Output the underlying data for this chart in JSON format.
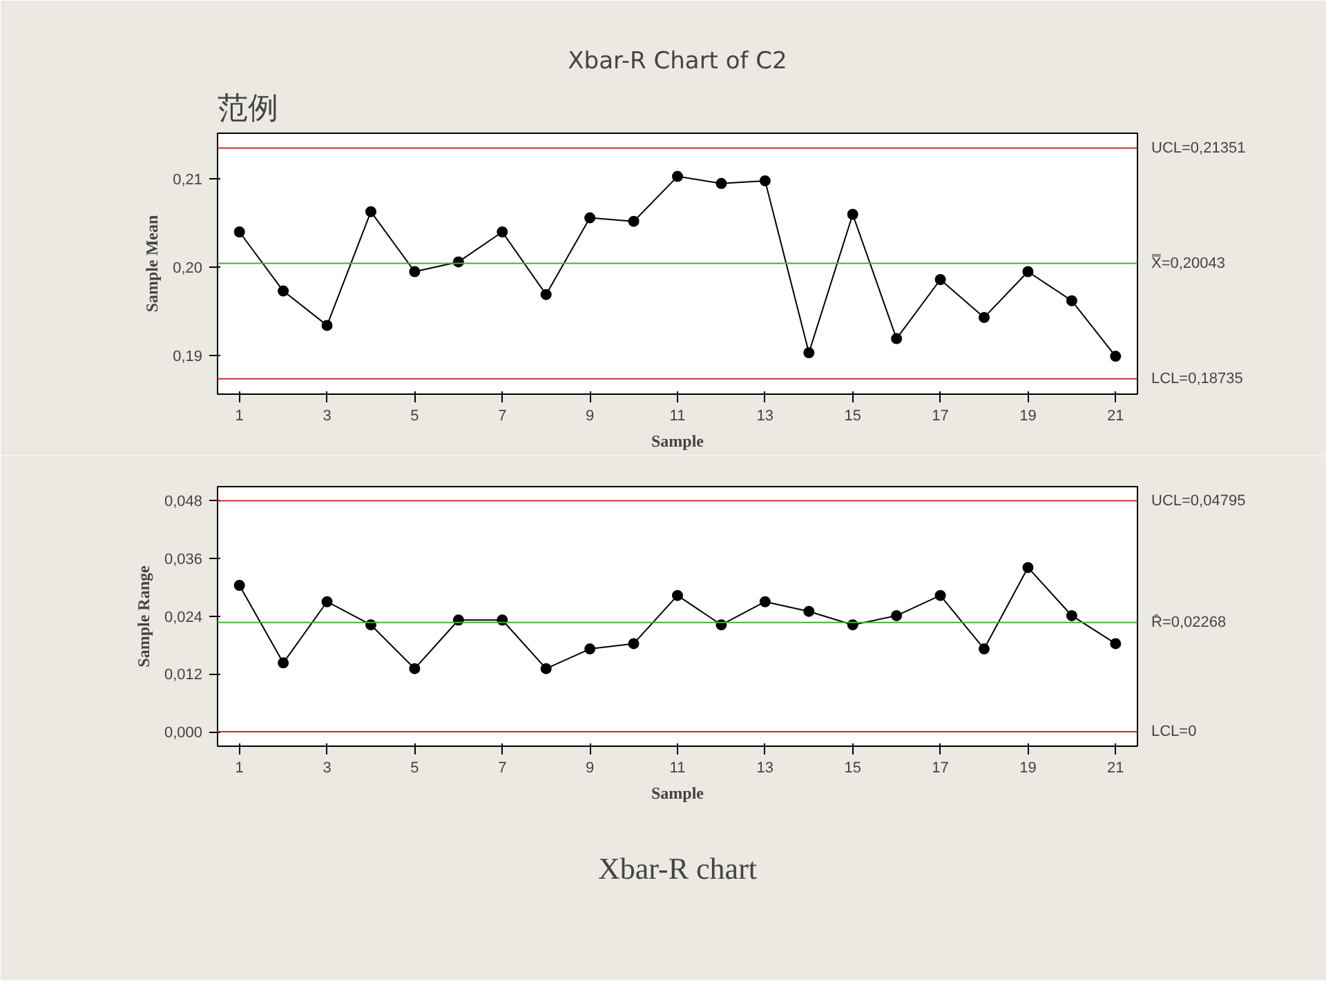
{
  "chart_data": [
    {
      "type": "line",
      "title": "Xbar-R Chart of C2",
      "xlabel": "Sample",
      "ylabel": "Sample Mean",
      "marker": "circle",
      "line_style": "solid",
      "grid": false,
      "x": [
        1,
        2,
        3,
        4,
        5,
        6,
        7,
        8,
        9,
        10,
        11,
        12,
        13,
        14,
        15,
        16,
        17,
        18,
        19,
        20,
        21
      ],
      "series": [
        {
          "color": "#000000",
          "values": [
            0.204,
            0.1973,
            0.1934,
            0.2063,
            0.1995,
            0.2006,
            0.204,
            0.1969,
            0.2056,
            0.2052,
            0.2103,
            0.2095,
            0.2098,
            0.1903,
            0.206,
            0.1919,
            0.1986,
            0.1943,
            0.1995,
            0.1962,
            0.1899
          ]
        }
      ],
      "xlim": [
        0.5,
        21.5
      ],
      "xticks": [
        1,
        3,
        5,
        7,
        9,
        11,
        13,
        15,
        17,
        19,
        21
      ],
      "ylim": [
        0.1856,
        0.2152
      ],
      "yticks": [
        {
          "value": 0.19,
          "label": "0,19"
        },
        {
          "value": 0.2,
          "label": "0,20"
        },
        {
          "value": 0.21,
          "label": "0,21"
        }
      ],
      "ref_lines": [
        {
          "axis": "y",
          "value": 0.21351,
          "label": "UCL=0,21351",
          "color": "#c03030"
        },
        {
          "axis": "y",
          "value": 0.20043,
          "label": "X̿=0,20043",
          "color": "#40b040"
        },
        {
          "axis": "y",
          "value": 0.18735,
          "label": "LCL=0,18735",
          "color": "#c03030"
        }
      ],
      "annotations": [
        "范例"
      ]
    },
    {
      "type": "line",
      "xlabel": "Sample",
      "ylabel": "Sample Range",
      "marker": "circle",
      "line_style": "solid",
      "grid": false,
      "x": [
        1,
        2,
        3,
        4,
        5,
        6,
        7,
        8,
        9,
        10,
        11,
        12,
        13,
        14,
        15,
        16,
        17,
        18,
        19,
        20,
        21
      ],
      "series": [
        {
          "color": "#000000",
          "values": [
            0.0304,
            0.0143,
            0.027,
            0.0222,
            0.0131,
            0.0232,
            0.0232,
            0.0131,
            0.0172,
            0.0183,
            0.0283,
            0.0222,
            0.027,
            0.025,
            0.0222,
            0.0241,
            0.0283,
            0.0172,
            0.0341,
            0.0241,
            0.0183
          ]
        }
      ],
      "xlim": [
        0.5,
        21.5
      ],
      "xticks": [
        1,
        3,
        5,
        7,
        9,
        11,
        13,
        15,
        17,
        19,
        21
      ],
      "ylim": [
        -0.003,
        0.0509
      ],
      "yticks": [
        {
          "value": 0.0,
          "label": "0,000"
        },
        {
          "value": 0.012,
          "label": "0,012"
        },
        {
          "value": 0.024,
          "label": "0,024"
        },
        {
          "value": 0.036,
          "label": "0,036"
        },
        {
          "value": 0.048,
          "label": "0,048"
        }
      ],
      "ref_lines": [
        {
          "axis": "y",
          "value": 0.04795,
          "label": "UCL=0,04795",
          "color": "#c03030"
        },
        {
          "axis": "y",
          "value": 0.02268,
          "label": "R̄=0,02268",
          "color": "#40b040"
        },
        {
          "axis": "y",
          "value": 0.0,
          "label": "LCL=0",
          "color": "#c03030"
        }
      ],
      "annotations": [
        "Xbar-R chart"
      ]
    }
  ]
}
